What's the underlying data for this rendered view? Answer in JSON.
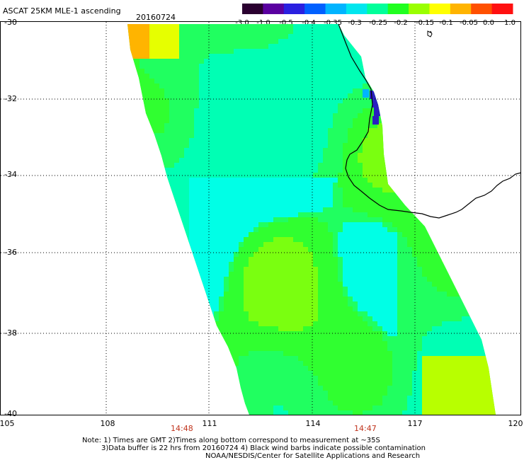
{
  "header": {
    "title": "ASCAT 25KM MLE-1 ascending",
    "date": "20160724"
  },
  "colorbar": {
    "labels": [
      "-3.0",
      "-1.0",
      "-0.5",
      "-0.4",
      "-0.35",
      "-0.3",
      "-0.25",
      "-0.2",
      "-0.15",
      "-0.1",
      "-0.05",
      "0.0",
      "1.0"
    ],
    "colors": [
      "#2a0030",
      "#5a00a0",
      "#2a20e0",
      "#0060ff",
      "#00b4ff",
      "#00e6ee",
      "#00ff9a",
      "#20ff20",
      "#9aff00",
      "#ffff00",
      "#ffb400",
      "#ff5000",
      "#ff1010"
    ]
  },
  "axes": {
    "lat_labels": [
      "-30",
      "-32",
      "-34",
      "-36",
      "-38",
      "-40"
    ],
    "lon_labels": [
      "105",
      "108",
      "111",
      "114",
      "117",
      "120"
    ]
  },
  "times": [
    "14:48",
    "14:47"
  ],
  "notes": [
    "Note: 1) Times are GMT 2)Times along bottom correspond to measurement at ~35S",
    "3)Data buffer is 22 hrs from 20160724 4) Black wind barbs indicate possible contamination",
    "NOAA/NESDIS/Center for Satellite Applications and Research"
  ]
}
